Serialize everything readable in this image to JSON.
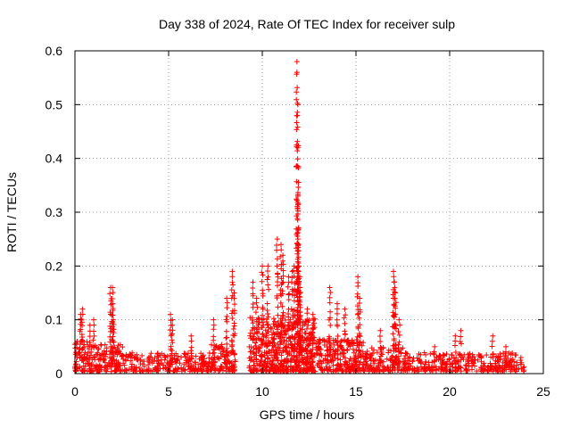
{
  "chart_data": {
    "type": "scatter",
    "title": "Day 338 of 2024, Rate Of TEC Index for receiver sulp",
    "xlabel": "GPS time / hours",
    "ylabel": "ROTI / TECUs",
    "xlim": [
      0,
      25
    ],
    "ylim": [
      0,
      0.6
    ],
    "x_ticks": [
      0,
      5,
      10,
      15,
      20,
      25
    ],
    "y_ticks": [
      0,
      0.1,
      0.2,
      0.3,
      0.4,
      0.5,
      0.6
    ],
    "x_tick_labels": [
      "0",
      "5",
      "10",
      "15",
      "20",
      "25"
    ],
    "y_tick_labels": [
      "0",
      "0.1",
      "0.2",
      "0.3",
      "0.4",
      "0.5",
      "0.6"
    ],
    "grid": true,
    "marker": "plus",
    "color": "#ff0000",
    "background_envelope": {
      "description": "dense band of points representing the bulk of observations per time segment",
      "segments": [
        {
          "x_start": 0.0,
          "x_end": 0.9,
          "y_min": 0.0,
          "y_max": 0.06
        },
        {
          "x_start": 0.9,
          "x_end": 2.6,
          "y_min": 0.0,
          "y_max": 0.05
        },
        {
          "x_start": 2.6,
          "x_end": 7.0,
          "y_min": 0.0,
          "y_max": 0.035
        },
        {
          "x_start": 7.0,
          "x_end": 8.6,
          "y_min": 0.0,
          "y_max": 0.05
        },
        {
          "x_start": 9.3,
          "x_end": 12.8,
          "y_min": 0.0,
          "y_max": 0.1
        },
        {
          "x_start": 12.8,
          "x_end": 15.5,
          "y_min": 0.0,
          "y_max": 0.06
        },
        {
          "x_start": 15.5,
          "x_end": 17.6,
          "y_min": 0.0,
          "y_max": 0.045
        },
        {
          "x_start": 17.6,
          "x_end": 24.0,
          "y_min": 0.0,
          "y_max": 0.035
        }
      ]
    },
    "highlighted_points": {
      "x": [
        0.3,
        0.4,
        0.8,
        1.0,
        1.9,
        2.0,
        2.0,
        2.05,
        5.1,
        5.2,
        6.2,
        7.4,
        8.1,
        8.4,
        8.5,
        9.5,
        9.7,
        10.0,
        10.3,
        10.8,
        11.0,
        11.1,
        11.4,
        11.6,
        11.7,
        11.85,
        11.85,
        11.9,
        11.9,
        11.9,
        11.9,
        11.95,
        12.0,
        12.0,
        12.4,
        12.7,
        13.6,
        14.0,
        14.4,
        15.1,
        15.2,
        16.3,
        17.0,
        17.05,
        17.1,
        17.3,
        19.2,
        20.3,
        20.6,
        22.3,
        23.0
      ],
      "y": [
        0.11,
        0.12,
        0.09,
        0.1,
        0.16,
        0.16,
        0.13,
        0.1,
        0.11,
        0.1,
        0.07,
        0.1,
        0.14,
        0.19,
        0.15,
        0.17,
        0.14,
        0.2,
        0.2,
        0.25,
        0.24,
        0.22,
        0.18,
        0.19,
        0.2,
        0.58,
        0.56,
        0.5,
        0.42,
        0.33,
        0.25,
        0.2,
        0.18,
        0.16,
        0.12,
        0.11,
        0.16,
        0.13,
        0.12,
        0.18,
        0.14,
        0.08,
        0.19,
        0.17,
        0.15,
        0.1,
        0.05,
        0.07,
        0.08,
        0.07,
        0.05
      ]
    }
  }
}
